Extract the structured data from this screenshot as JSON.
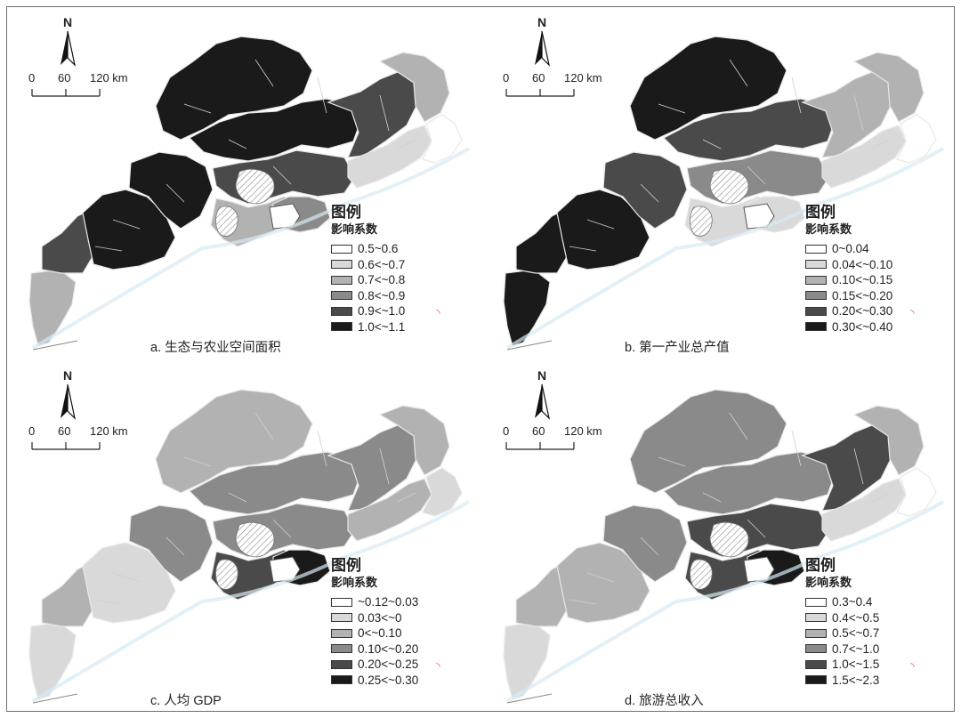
{
  "panels": [
    {
      "id": "a",
      "caption": "a. 生态与农业空间面积",
      "north": "N",
      "scale": {
        "labels": [
          "0",
          "60",
          "120 km"
        ]
      },
      "legend": {
        "title": "图例",
        "subtitle": "影响系数",
        "classes": [
          {
            "label": "0.5~0.6",
            "color": "#ffffff"
          },
          {
            "label": "0.6<~0.7",
            "color": "#d9d9d9"
          },
          {
            "label": "0.7<~0.8",
            "color": "#b2b2b2"
          },
          {
            "label": "0.8<~0.9",
            "color": "#8a8a8a"
          },
          {
            "label": "0.9<~1.0",
            "color": "#4a4a4a"
          },
          {
            "label": "1.0<~1.1",
            "color": "#1a1a1a"
          }
        ]
      },
      "regions": {
        "west": 4,
        "southwest": 5,
        "southwest_peninsula": 2,
        "central_west": 5,
        "north": 5,
        "north_central": 5,
        "center": 4,
        "pearl_delta": 2,
        "delta_core": 3,
        "east_central": 4,
        "northeast": 2,
        "east_coast": 1,
        "east_tip": 0
      }
    },
    {
      "id": "b",
      "caption": "b. 第一产业总产值",
      "north": "N",
      "scale": {
        "labels": [
          "0",
          "60",
          "120 km"
        ]
      },
      "legend": {
        "title": "图例",
        "subtitle": "影响系数",
        "classes": [
          {
            "label": "0~0.04",
            "color": "#ffffff"
          },
          {
            "label": "0.04<~0.10",
            "color": "#d9d9d9"
          },
          {
            "label": "0.10<~0.15",
            "color": "#b2b2b2"
          },
          {
            "label": "0.15<~0.20",
            "color": "#8a8a8a"
          },
          {
            "label": "0.20<~0.30",
            "color": "#4a4a4a"
          },
          {
            "label": "0.30<~0.40",
            "color": "#1a1a1a"
          }
        ]
      },
      "regions": {
        "west": 5,
        "southwest": 5,
        "southwest_peninsula": 5,
        "central_west": 4,
        "north": 5,
        "north_central": 4,
        "center": 3,
        "pearl_delta": 1,
        "delta_core": 1,
        "east_central": 2,
        "northeast": 2,
        "east_coast": 1,
        "east_tip": 0
      }
    },
    {
      "id": "c",
      "caption": "c. 人均 GDP",
      "north": "N",
      "scale": {
        "labels": [
          "0",
          "60",
          "120 km"
        ]
      },
      "legend": {
        "title": "图例",
        "subtitle": "影响系数",
        "classes": [
          {
            "label": "~0.12~0.03",
            "color": "#ffffff"
          },
          {
            "label": "0.03<~0",
            "color": "#d9d9d9"
          },
          {
            "label": "0<~0.10",
            "color": "#b2b2b2"
          },
          {
            "label": "0.10<~0.20",
            "color": "#8a8a8a"
          },
          {
            "label": "0.20<~0.25",
            "color": "#4a4a4a"
          },
          {
            "label": "0.25<~0.30",
            "color": "#1a1a1a"
          }
        ]
      },
      "regions": {
        "west": 2,
        "southwest": 1,
        "southwest_peninsula": 1,
        "central_west": 3,
        "north": 2,
        "north_central": 3,
        "center": 3,
        "pearl_delta": 4,
        "delta_core": 5,
        "east_central": 3,
        "northeast": 2,
        "east_coast": 2,
        "east_tip": 1
      }
    },
    {
      "id": "d",
      "caption": "d. 旅游总收入",
      "north": "N",
      "scale": {
        "labels": [
          "0",
          "60",
          "120 km"
        ]
      },
      "legend": {
        "title": "图例",
        "subtitle": "影响系数",
        "classes": [
          {
            "label": "0.3~0.4",
            "color": "#ffffff"
          },
          {
            "label": "0.4<~0.5",
            "color": "#d9d9d9"
          },
          {
            "label": "0.5<~0.7",
            "color": "#b2b2b2"
          },
          {
            "label": "0.7<~1.0",
            "color": "#8a8a8a"
          },
          {
            "label": "1.0<~1.5",
            "color": "#4a4a4a"
          },
          {
            "label": "1.5<~2.3",
            "color": "#1a1a1a"
          }
        ]
      },
      "regions": {
        "west": 2,
        "southwest": 2,
        "southwest_peninsula": 1,
        "central_west": 3,
        "north": 3,
        "north_central": 3,
        "center": 4,
        "pearl_delta": 4,
        "delta_core": 5,
        "east_central": 4,
        "northeast": 2,
        "east_coast": 1,
        "east_tip": 0
      }
    }
  ]
}
